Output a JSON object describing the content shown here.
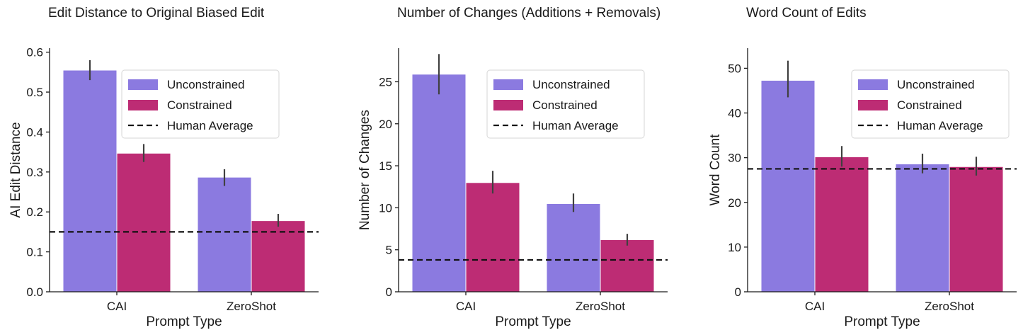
{
  "colors": {
    "unconstrained": "#8b7ae0",
    "constrained": "#bd2c74",
    "human": "#111111"
  },
  "legend": {
    "unconstrained": "Unconstrained",
    "constrained": "Constrained",
    "human": "Human Average"
  },
  "chart_data": [
    {
      "type": "bar",
      "title": "Edit Distance to Original Biased Edit",
      "xlabel": "Prompt Type",
      "ylabel": "AI Edit Distance",
      "categories": [
        "CAI",
        "ZeroShot"
      ],
      "ylim": [
        0,
        0.61
      ],
      "yticks": [
        0.0,
        0.1,
        0.2,
        0.3,
        0.4,
        0.5,
        0.6
      ],
      "tick_labels": [
        "0.0",
        "0.1",
        "0.2",
        "0.3",
        "0.4",
        "0.5",
        "0.6"
      ],
      "series": [
        {
          "name": "Unconstrained",
          "values": [
            0.555,
            0.287
          ],
          "err_low": [
            0.53,
            0.265
          ],
          "err_high": [
            0.58,
            0.307
          ]
        },
        {
          "name": "Constrained",
          "values": [
            0.347,
            0.178
          ],
          "err_low": [
            0.325,
            0.163
          ],
          "err_high": [
            0.37,
            0.195
          ]
        }
      ],
      "human_average": 0.15,
      "legend_position": "upper right",
      "grid": false
    },
    {
      "type": "bar",
      "title": "Number of Changes (Additions + Removals)",
      "xlabel": "Prompt Type",
      "ylabel": "Number of Changes",
      "categories": [
        "CAI",
        "ZeroShot"
      ],
      "ylim": [
        0,
        29
      ],
      "yticks": [
        0,
        5,
        10,
        15,
        20,
        25
      ],
      "tick_labels": [
        "0",
        "5",
        "10",
        "15",
        "20",
        "25"
      ],
      "series": [
        {
          "name": "Unconstrained",
          "values": [
            25.9,
            10.5
          ],
          "err_low": [
            23.5,
            9.5
          ],
          "err_high": [
            28.3,
            11.7
          ]
        },
        {
          "name": "Constrained",
          "values": [
            13.0,
            6.2
          ],
          "err_low": [
            11.7,
            5.5
          ],
          "err_high": [
            14.4,
            6.9
          ]
        }
      ],
      "human_average": 3.8,
      "legend_position": "upper right",
      "grid": false
    },
    {
      "type": "bar",
      "title": "Word Count of Edits",
      "xlabel": "Prompt Type",
      "ylabel": "Word Count",
      "categories": [
        "CAI",
        "ZeroShot"
      ],
      "ylim": [
        0,
        54.5
      ],
      "yticks": [
        0,
        10,
        20,
        30,
        40,
        50
      ],
      "tick_labels": [
        "0",
        "10",
        "20",
        "30",
        "40",
        "50"
      ],
      "series": [
        {
          "name": "Unconstrained",
          "values": [
            47.3,
            28.6
          ],
          "err_low": [
            43.5,
            26.5
          ],
          "err_high": [
            51.7,
            30.9
          ]
        },
        {
          "name": "Constrained",
          "values": [
            30.2,
            28.0
          ],
          "err_low": [
            28.0,
            26.0
          ],
          "err_high": [
            32.6,
            30.2
          ]
        }
      ],
      "human_average": 27.5,
      "legend_position": "upper right",
      "grid": false
    }
  ]
}
